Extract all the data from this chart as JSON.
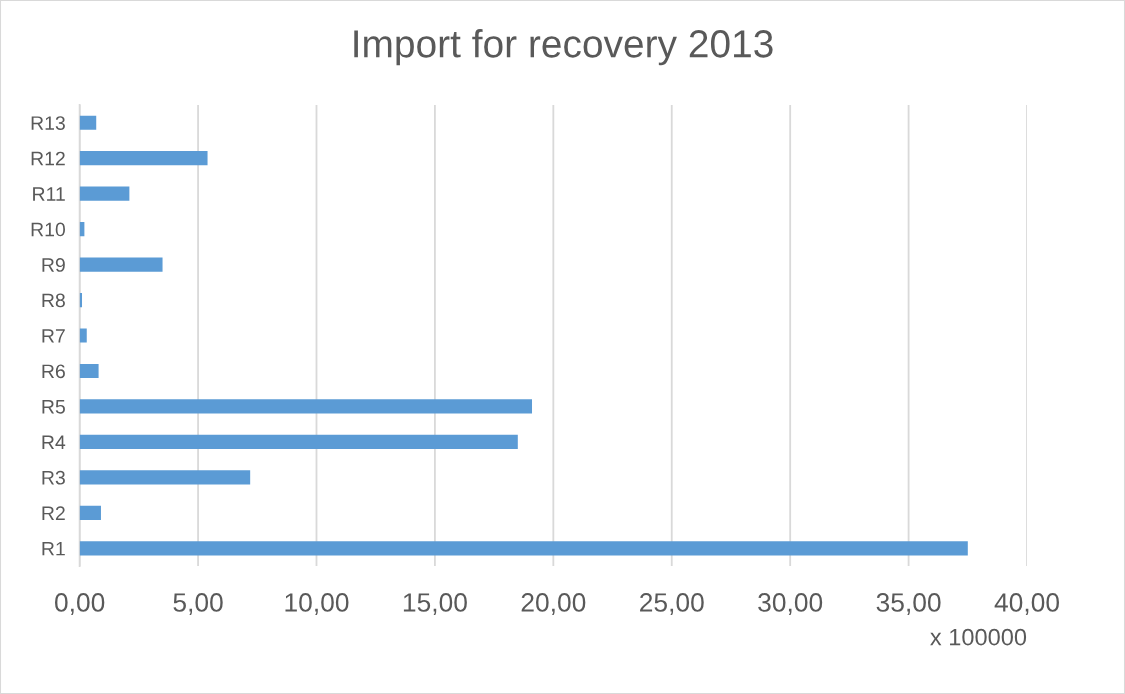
{
  "chart_data": {
    "type": "bar",
    "orientation": "horizontal",
    "title": "Import for recovery 2013",
    "xlabel": "x 100000",
    "categories": [
      "R13",
      "R12",
      "R11",
      "R10",
      "R9",
      "R8",
      "R7",
      "R6",
      "R5",
      "R4",
      "R3",
      "R2",
      "R1"
    ],
    "values": [
      0.7,
      5.4,
      2.1,
      0.2,
      3.5,
      0.1,
      0.3,
      0.8,
      19.1,
      18.5,
      7.2,
      0.9,
      37.5
    ],
    "color": "#5b9bd5",
    "xlim": [
      0,
      40
    ],
    "xticks": [
      {
        "value": 0,
        "label": "0,00"
      },
      {
        "value": 5,
        "label": "5,00"
      },
      {
        "value": 10,
        "label": "10,00"
      },
      {
        "value": 15,
        "label": "15,00"
      },
      {
        "value": 20,
        "label": "20,00"
      },
      {
        "value": 25,
        "label": "25,00"
      },
      {
        "value": 30,
        "label": "30,00"
      },
      {
        "value": 35,
        "label": "35,00"
      },
      {
        "value": 40,
        "label": "40,00"
      }
    ],
    "grid": "x"
  }
}
